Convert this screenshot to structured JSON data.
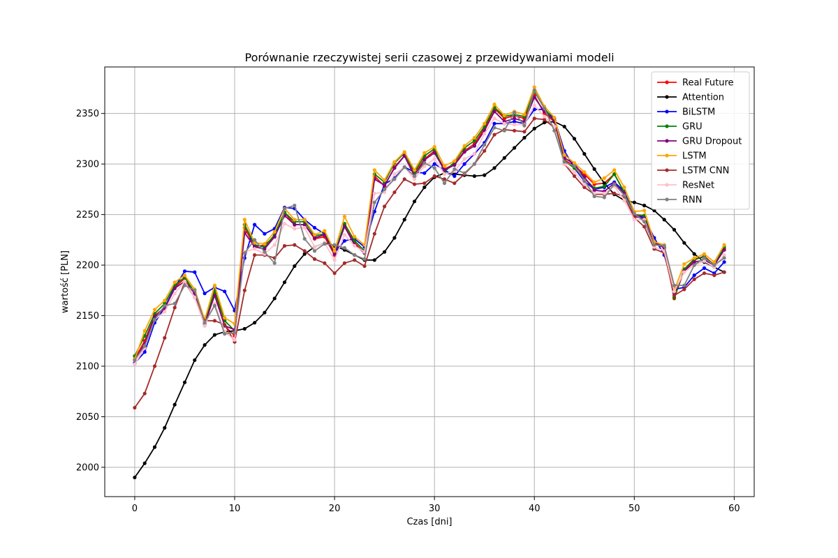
{
  "chart_data": {
    "type": "line",
    "title": "Porównanie rzeczywistej serii czasowej z przewidywaniami modeli",
    "xlabel": "Czas [dni]",
    "ylabel": "wartość [PLN]",
    "xlim": [
      -3,
      62
    ],
    "ylim": [
      1971,
      2396
    ],
    "xticks": [
      0,
      10,
      20,
      30,
      40,
      50,
      60
    ],
    "yticks": [
      2000,
      2050,
      2100,
      2150,
      2200,
      2250,
      2300,
      2350
    ],
    "grid": true,
    "legend_position": "top-right",
    "series": [
      {
        "name": "Real Future",
        "color": "#ff0000",
        "values": [
          2107,
          2125,
          2150,
          2158,
          2178,
          2187,
          2172,
          2140,
          2172,
          2140,
          2130,
          2237,
          2218,
          2220,
          2228,
          2252,
          2240,
          2240,
          2226,
          2228,
          2210,
          2240,
          2222,
          2212,
          2288,
          2278,
          2297,
          2308,
          2290,
          2305,
          2313,
          2295,
          2300,
          2313,
          2320,
          2335,
          2355,
          2345,
          2348,
          2345,
          2368,
          2350,
          2342,
          2304,
          2298,
          2290,
          2280,
          2281,
          2290,
          2272,
          2250,
          2249,
          2222,
          2217,
          2167,
          2195,
          2205,
          2209,
          2200,
          2216
        ]
      },
      {
        "name": "Attention",
        "color": "#000000",
        "values": [
          1990,
          2004,
          2020,
          2039,
          2062,
          2084,
          2106,
          2121,
          2131,
          2134,
          2135,
          2137,
          2143,
          2153,
          2167,
          2183,
          2199,
          2211,
          2218,
          2222,
          2219,
          2215,
          2210,
          2205,
          2205,
          2213,
          2227,
          2245,
          2263,
          2277,
          2287,
          2291,
          2290,
          2289,
          2288,
          2289,
          2296,
          2306,
          2316,
          2326,
          2335,
          2341,
          2342,
          2337,
          2325,
          2310,
          2295,
          2281,
          2270,
          2264,
          2262,
          2259,
          2254,
          2245,
          2235,
          2222,
          2211,
          2203,
          2198,
          2193
        ]
      },
      {
        "name": "BiLSTM",
        "color": "#0000ff",
        "values": [
          2103,
          2114,
          2143,
          2158,
          2178,
          2194,
          2193,
          2172,
          2178,
          2174,
          2155,
          2207,
          2240,
          2231,
          2236,
          2257,
          2256,
          2245,
          2237,
          2231,
          2212,
          2224,
          2226,
          2218,
          2253,
          2280,
          2286,
          2297,
          2292,
          2291,
          2300,
          2294,
          2288,
          2300,
          2310,
          2321,
          2340,
          2340,
          2342,
          2340,
          2354,
          2354,
          2345,
          2313,
          2296,
          2283,
          2275,
          2277,
          2282,
          2273,
          2250,
          2247,
          2227,
          2210,
          2176,
          2178,
          2190,
          2197,
          2192,
          2203
        ]
      },
      {
        "name": "GRU",
        "color": "#008000",
        "values": [
          2110,
          2130,
          2152,
          2162,
          2180,
          2188,
          2173,
          2143,
          2175,
          2145,
          2135,
          2240,
          2220,
          2218,
          2230,
          2252,
          2243,
          2243,
          2229,
          2231,
          2212,
          2241,
          2224,
          2214,
          2290,
          2282,
          2301,
          2311,
          2292,
          2308,
          2315,
          2292,
          2302,
          2316,
          2323,
          2337,
          2356,
          2347,
          2349,
          2347,
          2372,
          2355,
          2343,
          2303,
          2296,
          2286,
          2276,
          2278,
          2290,
          2272,
          2249,
          2249,
          2221,
          2219,
          2168,
          2196,
          2206,
          2208,
          2200,
          2218
        ]
      },
      {
        "name": "GRU Dropout",
        "color": "#800080",
        "values": [
          2106,
          2122,
          2149,
          2157,
          2177,
          2184,
          2172,
          2142,
          2170,
          2140,
          2136,
          2232,
          2218,
          2216,
          2228,
          2249,
          2240,
          2240,
          2227,
          2230,
          2211,
          2238,
          2220,
          2212,
          2285,
          2279,
          2296,
          2308,
          2288,
          2304,
          2311,
          2294,
          2299,
          2312,
          2318,
          2333,
          2352,
          2342,
          2345,
          2342,
          2366,
          2352,
          2343,
          2306,
          2300,
          2287,
          2274,
          2273,
          2281,
          2271,
          2248,
          2246,
          2223,
          2217,
          2172,
          2194,
          2203,
          2205,
          2200,
          2215
        ]
      },
      {
        "name": "LSTM",
        "color": "#ffa500",
        "values": [
          2107,
          2135,
          2156,
          2165,
          2183,
          2190,
          2176,
          2146,
          2180,
          2148,
          2142,
          2245,
          2222,
          2221,
          2233,
          2256,
          2245,
          2245,
          2230,
          2234,
          2214,
          2248,
          2228,
          2220,
          2294,
          2284,
          2302,
          2312,
          2294,
          2311,
          2317,
          2298,
          2303,
          2318,
          2326,
          2340,
          2359,
          2348,
          2352,
          2349,
          2376,
          2357,
          2346,
          2309,
          2301,
          2292,
          2282,
          2286,
          2294,
          2277,
          2253,
          2254,
          2223,
          2220,
          2175,
          2201,
          2207,
          2211,
          2203,
          2220
        ]
      },
      {
        "name": "LSTM CNN",
        "color": "#a52a2a",
        "values": [
          2059,
          2073,
          2100,
          2128,
          2158,
          2183,
          2168,
          2145,
          2145,
          2141,
          2124,
          2175,
          2210,
          2210,
          2207,
          2219,
          2220,
          2214,
          2206,
          2202,
          2192,
          2202,
          2205,
          2199,
          2231,
          2258,
          2272,
          2285,
          2280,
          2281,
          2288,
          2285,
          2281,
          2290,
          2300,
          2313,
          2329,
          2334,
          2333,
          2332,
          2345,
          2344,
          2336,
          2300,
          2288,
          2277,
          2270,
          2270,
          2271,
          2268,
          2247,
          2238,
          2216,
          2212,
          2170,
          2176,
          2186,
          2192,
          2190,
          2193
        ]
      },
      {
        "name": "ResNet",
        "color": "#ffc0cb",
        "values": [
          2102,
          2118,
          2146,
          2154,
          2172,
          2184,
          2168,
          2140,
          2162,
          2134,
          2126,
          2213,
          2216,
          2211,
          2220,
          2241,
          2236,
          2237,
          2218,
          2222,
          2205,
          2230,
          2219,
          2213,
          2271,
          2272,
          2290,
          2297,
          2285,
          2298,
          2305,
          2290,
          2293,
          2305,
          2310,
          2330,
          2345,
          2340,
          2339,
          2339,
          2358,
          2347,
          2337,
          2300,
          2292,
          2280,
          2271,
          2271,
          2278,
          2264,
          2245,
          2245,
          2218,
          2214,
          2174,
          2193,
          2200,
          2204,
          2198,
          2210
        ]
      },
      {
        "name": "RNN",
        "color": "#808080",
        "values": [
          2106,
          2120,
          2146,
          2160,
          2162,
          2180,
          2175,
          2143,
          2160,
          2132,
          2133,
          2212,
          2225,
          2213,
          2202,
          2256,
          2259,
          2226,
          2214,
          2221,
          2220,
          2217,
          2210,
          2206,
          2262,
          2275,
          2285,
          2297,
          2288,
          2301,
          2296,
          2281,
          2295,
          2291,
          2300,
          2319,
          2336,
          2333,
          2351,
          2338,
          2373,
          2355,
          2333,
          2302,
          2298,
          2284,
          2268,
          2267,
          2280,
          2269,
          2251,
          2243,
          2220,
          2219,
          2180,
          2180,
          2200,
          2207,
          2200,
          2207
        ]
      }
    ]
  }
}
